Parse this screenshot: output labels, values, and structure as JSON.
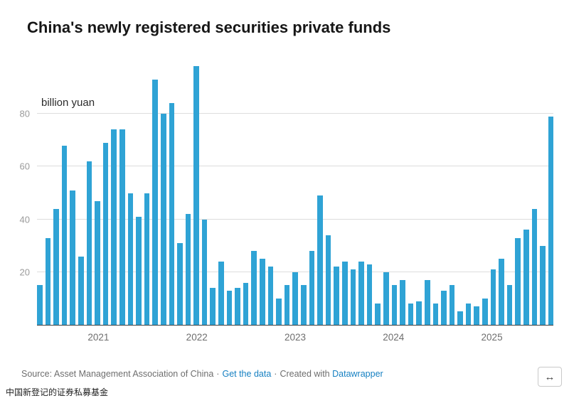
{
  "title": "China's newly registered securities private funds",
  "unit_label": "billion yuan",
  "colors": {
    "bar": "#2fa3d5",
    "link": "#1680c2",
    "gridline": "#dddddd",
    "axis": "#3f3f3f"
  },
  "chart_data": {
    "type": "bar",
    "title": "China's newly registered securities private funds",
    "ylabel": "billion yuan",
    "xlabel": "",
    "ylim": [
      0,
      100
    ],
    "yticks": [
      20,
      40,
      60,
      80
    ],
    "xtick_labels": [
      "2021",
      "2022",
      "2023",
      "2024",
      "2025"
    ],
    "grid": true,
    "legend": "none",
    "x": [
      "2020-06",
      "2020-07",
      "2020-08",
      "2020-09",
      "2020-10",
      "2020-11",
      "2020-12",
      "2021-01",
      "2021-02",
      "2021-03",
      "2021-04",
      "2021-05",
      "2021-06",
      "2021-07",
      "2021-08",
      "2021-09",
      "2021-10",
      "2021-11",
      "2021-12",
      "2022-01",
      "2022-02",
      "2022-03",
      "2022-04",
      "2022-05",
      "2022-06",
      "2022-07",
      "2022-08",
      "2022-09",
      "2022-10",
      "2022-11",
      "2022-12",
      "2023-01",
      "2023-02",
      "2023-03",
      "2023-04",
      "2023-05",
      "2023-06",
      "2023-07",
      "2023-08",
      "2023-09",
      "2023-10",
      "2023-11",
      "2023-12",
      "2024-01",
      "2024-02",
      "2024-03",
      "2024-04",
      "2024-05",
      "2024-06",
      "2024-07",
      "2024-08",
      "2024-09",
      "2024-10",
      "2024-11",
      "2024-12",
      "2025-01",
      "2025-02",
      "2025-03",
      "2025-04",
      "2025-05",
      "2025-06",
      "2025-07",
      "2025-08"
    ],
    "values": [
      15,
      33,
      44,
      68,
      51,
      26,
      62,
      47,
      69,
      74,
      74,
      50,
      41,
      50,
      93,
      80,
      84,
      31,
      42,
      98,
      40,
      14,
      24,
      13,
      14,
      16,
      28,
      25,
      22,
      10,
      15,
      20,
      15,
      28,
      49,
      34,
      22,
      24,
      21,
      24,
      23,
      8,
      20,
      15,
      17,
      8,
      9,
      17,
      8,
      13,
      15,
      5,
      8,
      7,
      10,
      21,
      25,
      15,
      33,
      36,
      44,
      30,
      79
    ]
  },
  "footer": {
    "source_prefix": "Source: Asset Management Association of China",
    "separator": "·",
    "get_data_link": "Get the data",
    "created_with": "Created with",
    "datawrapper_link": "Datawrapper"
  },
  "caption": "中国新登记的证券私募基金",
  "resize_icon": "↔"
}
